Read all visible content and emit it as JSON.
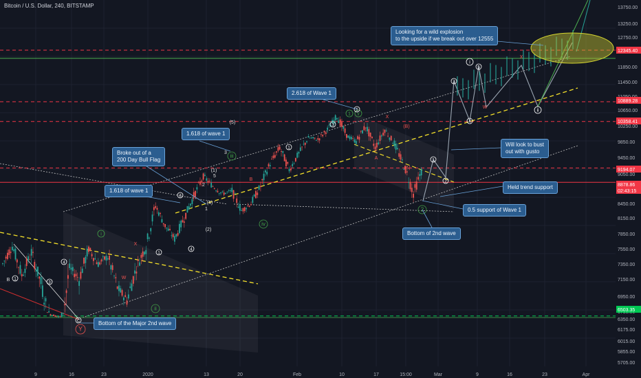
{
  "chart_title": "Bitcoin / U.S. Dollar, 240, BITSTAMP",
  "colors": {
    "background": "#131722",
    "up_candle": "#26a69a",
    "down_candle": "#ef5350",
    "price_tag": "#f23645",
    "support_line": "#00c853",
    "trend_line": "#f5e12a",
    "callout_bg": "#2b5d8f",
    "target_ellipse": "#c8c830"
  },
  "chart_data": {
    "type": "candlestick",
    "title": "Bitcoin / U.S. Dollar, 240, BITSTAMP",
    "y_axis": {
      "ticks": [
        "13750.00",
        "13250.00",
        "12750.00",
        "12345.40",
        "11850.00",
        "11450.00",
        "11050.00",
        "10889.28",
        "10650.00",
        "10358.41",
        "10250.00",
        "9850.00",
        "9450.00",
        "9194.07",
        "9050.00",
        "8878.86",
        "02:43:15",
        "8450.00",
        "8150.00",
        "7850.00",
        "7550.00",
        "7350.00",
        "7150.00",
        "6950.00",
        "6750.00",
        "6503.35",
        "6350.00",
        "6175.00",
        "6015.00",
        "5855.00",
        "5705.00"
      ],
      "highlighted": [
        {
          "label": "12345.40",
          "value": 12345.4,
          "color": "#f23645"
        },
        {
          "label": "10889.28",
          "value": 10889.28,
          "color": "#f23645"
        },
        {
          "label": "10358.41",
          "value": 10358.41,
          "color": "#f23645"
        },
        {
          "label": "9194.07",
          "value": 9194.07,
          "color": "#f23645"
        },
        {
          "label": "8878.86",
          "value": 8878.86,
          "color": "#f23645"
        },
        {
          "label": "02:43:15",
          "value": null,
          "color": "#f23645"
        },
        {
          "label": "6503.35",
          "value": 6503.35,
          "color": "#00c853"
        }
      ]
    },
    "x_axis": {
      "ticks": [
        "9",
        "16",
        "23",
        "2020",
        "13",
        "20",
        "Feb",
        "10",
        "17",
        "15:00",
        "Mar",
        "9",
        "16",
        "23",
        "Apr"
      ]
    },
    "price_path": [
      7350,
      7600,
      7200,
      7500,
      7100,
      6600,
      6430,
      7300,
      7150,
      7550,
      7350,
      7450,
      7050,
      6900,
      7300,
      7600,
      8400,
      8000,
      7750,
      8150,
      8600,
      9000,
      8800,
      8650,
      8700,
      8300,
      8450,
      8800,
      9300,
      9700,
      9150,
      9550,
      9950,
      9900,
      10150,
      10500,
      10000,
      9850,
      10250,
      9700,
      10150,
      9800,
      9250,
      8650,
      9200
    ],
    "horizontal_levels": [
      {
        "value": 12345.4,
        "style": "dashed",
        "color": "#f23645"
      },
      {
        "value": 12100,
        "style": "solid",
        "color": "#4caf50"
      },
      {
        "value": 10889.28,
        "style": "dashed",
        "color": "#f23645"
      },
      {
        "value": 10358.41,
        "style": "dashed",
        "color": "#f23645"
      },
      {
        "value": 9194.07,
        "style": "dashed",
        "color": "#f23645"
      },
      {
        "value": 8878.86,
        "style": "solid",
        "color": "#f23645"
      },
      {
        "value": 6503.35,
        "style": "dashed",
        "color": "#00c853"
      }
    ],
    "annotations": [
      "Looking for a wild explosion\nto the upside if we break out over 12555",
      "2.618 of Wave 1",
      "1.618 of wave 1",
      "Broke out of a\n200 Day Bull Flag",
      "1.618 of wave 1",
      "Will look to bust\nout with gusto",
      "Held trend support",
      "0.5 support of Wave 1",
      "Bottom of 2nd wave",
      "Bottom of the Major 2nd wave"
    ],
    "wave_labels": [
      "Y",
      "C",
      "B",
      "ii",
      "i",
      "iii",
      "iv",
      "v",
      "1",
      "2",
      "3",
      "4",
      "5",
      "(1)",
      "(2)",
      "(3)",
      "(4)",
      "(5)",
      "(A)",
      "(B)",
      "W",
      "X",
      "A",
      "B",
      "C",
      "ii"
    ]
  }
}
